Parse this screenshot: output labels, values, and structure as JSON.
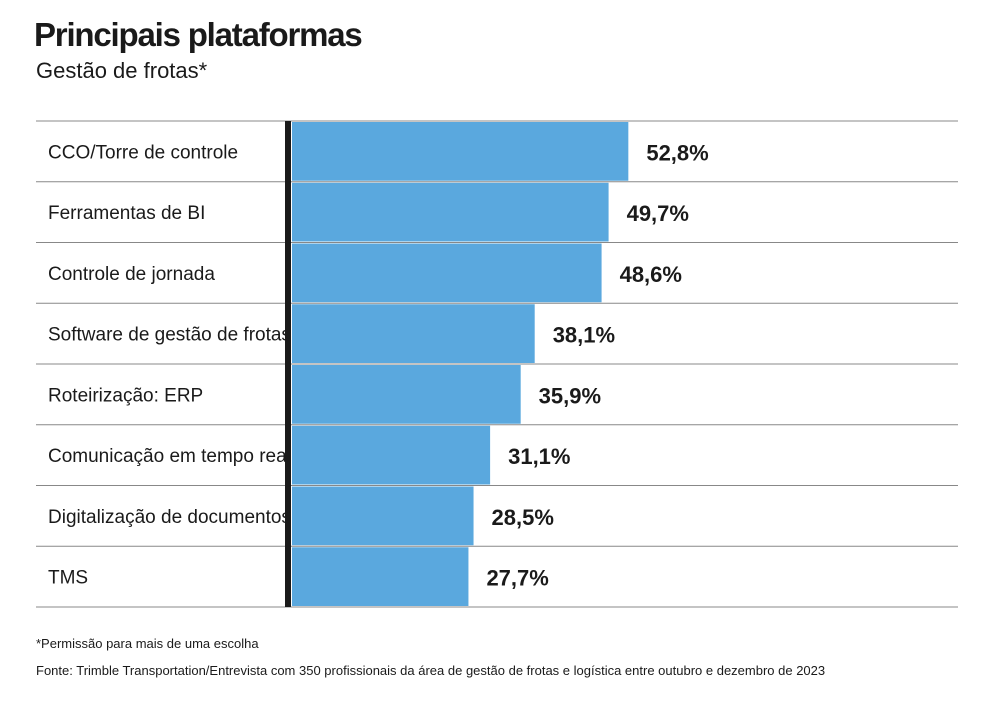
{
  "header": {
    "title": "Principais plataformas",
    "subtitle": "Gestão de frotas*"
  },
  "colors": {
    "bar": "#5aa8de",
    "axis": "#1a1a1a",
    "gridline": "#888888"
  },
  "chart_data": {
    "type": "bar",
    "orientation": "horizontal",
    "title": "Principais plataformas",
    "subtitle": "Gestão de frotas*",
    "categories": [
      "CCO/Torre de controle",
      "Ferramentas de BI",
      "Controle de jornada",
      "Software de gestão de frotas",
      "Roteirização: ERP",
      "Comunicação em tempo real",
      "Digitalização de documentos",
      "TMS"
    ],
    "values": [
      52.8,
      49.7,
      48.6,
      38.1,
      35.9,
      31.1,
      28.5,
      27.7
    ],
    "value_labels": [
      "52,8%",
      "49,7%",
      "48,6%",
      "38,1%",
      "35,9%",
      "31,1%",
      "28,5%",
      "27,7%"
    ],
    "unit": "%",
    "xlim": [
      0,
      100
    ],
    "grid": false
  },
  "footer": {
    "note": "*Permissão para mais de uma escolha",
    "source": "Fonte: Trimble Transportation/Entrevista com 350 profissionais da área de gestão de frotas e logística entre outubro e dezembro de 2023"
  }
}
